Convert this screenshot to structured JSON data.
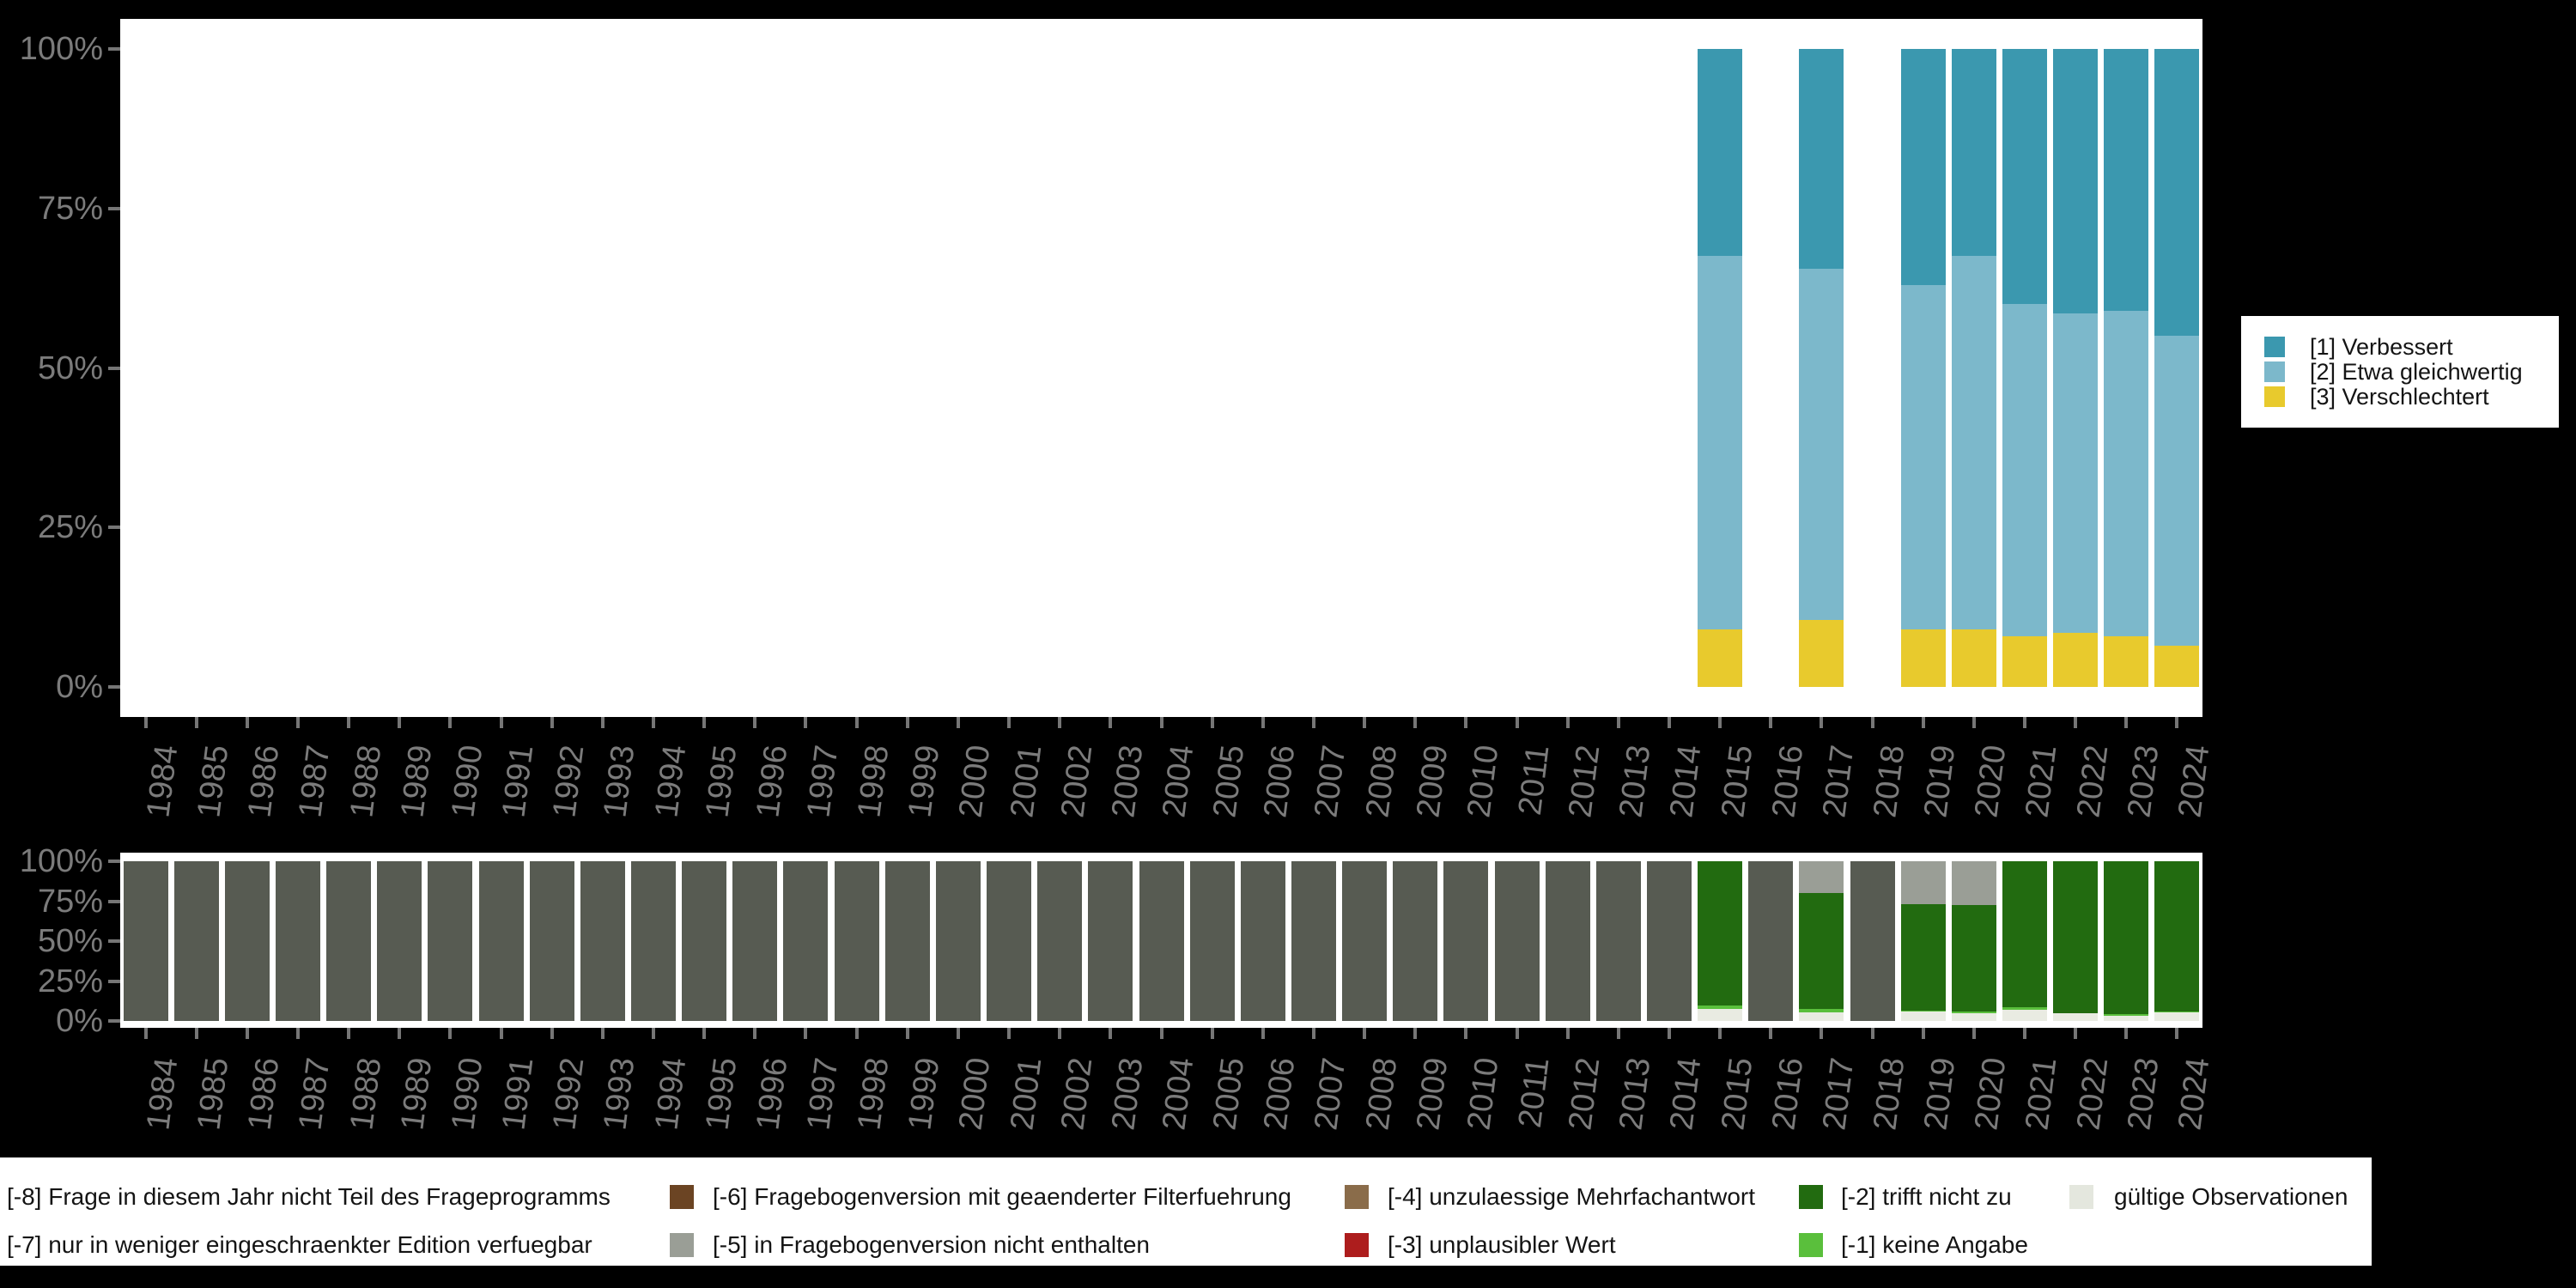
{
  "figure": {
    "background": "#000000",
    "panel_color": "#ffffff",
    "axis_text_color": "#7b7b7b",
    "tick_color": "#767676",
    "legend_text_color": "#141414"
  },
  "y_axis_tick_labels": [
    "0%",
    "25%",
    "50%",
    "75%",
    "100%"
  ],
  "years": [
    "1984",
    "1985",
    "1986",
    "1987",
    "1988",
    "1989",
    "1990",
    "1991",
    "1992",
    "1993",
    "1994",
    "1995",
    "1996",
    "1997",
    "1998",
    "1999",
    "2000",
    "2001",
    "2002",
    "2003",
    "2004",
    "2005",
    "2006",
    "2007",
    "2008",
    "2009",
    "2010",
    "2011",
    "2012",
    "2013",
    "2014",
    "2015",
    "2016",
    "2017",
    "2018",
    "2019",
    "2020",
    "2021",
    "2022",
    "2023",
    "2024"
  ],
  "chart_data": [
    {
      "type": "bar",
      "variant": "stacked-percent",
      "title": "",
      "xlabel": "",
      "ylabel": "",
      "ylim": [
        0,
        100
      ],
      "grid": false,
      "legend_position": "right-outside",
      "categories": [
        "1984",
        "1985",
        "1986",
        "1987",
        "1988",
        "1989",
        "1990",
        "1991",
        "1992",
        "1993",
        "1994",
        "1995",
        "1996",
        "1997",
        "1998",
        "1999",
        "2000",
        "2001",
        "2002",
        "2003",
        "2004",
        "2005",
        "2006",
        "2007",
        "2008",
        "2009",
        "2010",
        "2011",
        "2012",
        "2013",
        "2014",
        "2015",
        "2016",
        "2017",
        "2018",
        "2019",
        "2020",
        "2021",
        "2022",
        "2023",
        "2024"
      ],
      "series": [
        {
          "name": "[3] Verschlechtert",
          "color": "#e8ca2d",
          "values": [
            null,
            null,
            null,
            null,
            null,
            null,
            null,
            null,
            null,
            null,
            null,
            null,
            null,
            null,
            null,
            null,
            null,
            null,
            null,
            null,
            null,
            null,
            null,
            null,
            null,
            null,
            null,
            null,
            null,
            null,
            null,
            9,
            null,
            10.5,
            null,
            9,
            9,
            8,
            8.5,
            8,
            6.5
          ]
        },
        {
          "name": "[2] Etwa gleichwertig",
          "color": "#7cb8cb",
          "values": [
            null,
            null,
            null,
            null,
            null,
            null,
            null,
            null,
            null,
            null,
            null,
            null,
            null,
            null,
            null,
            null,
            null,
            null,
            null,
            null,
            null,
            null,
            null,
            null,
            null,
            null,
            null,
            null,
            null,
            null,
            null,
            58.5,
            null,
            55,
            null,
            54,
            58.5,
            52,
            50,
            51,
            48.5
          ]
        },
        {
          "name": "[1] Verbessert",
          "color": "#3b98af",
          "values": [
            null,
            null,
            null,
            null,
            null,
            null,
            null,
            null,
            null,
            null,
            null,
            null,
            null,
            null,
            null,
            null,
            null,
            null,
            null,
            null,
            null,
            null,
            null,
            null,
            null,
            null,
            null,
            null,
            null,
            null,
            null,
            32.5,
            null,
            34.5,
            null,
            37,
            32.5,
            40,
            41.5,
            41,
            45
          ]
        }
      ]
    },
    {
      "type": "bar",
      "variant": "stacked-percent",
      "title": "",
      "xlabel": "",
      "ylabel": "",
      "ylim": [
        0,
        100
      ],
      "grid": false,
      "legend_position": "bottom-outside",
      "categories": [
        "1984",
        "1985",
        "1986",
        "1987",
        "1988",
        "1989",
        "1990",
        "1991",
        "1992",
        "1993",
        "1994",
        "1995",
        "1996",
        "1997",
        "1998",
        "1999",
        "2000",
        "2001",
        "2002",
        "2003",
        "2004",
        "2005",
        "2006",
        "2007",
        "2008",
        "2009",
        "2010",
        "2011",
        "2012",
        "2013",
        "2014",
        "2015",
        "2016",
        "2017",
        "2018",
        "2019",
        "2020",
        "2021",
        "2022",
        "2023",
        "2024"
      ],
      "series": [
        {
          "name": "gültige Observationen",
          "color": "#e9ebe2",
          "values": [
            0,
            0,
            0,
            0,
            0,
            0,
            0,
            0,
            0,
            0,
            0,
            0,
            0,
            0,
            0,
            0,
            0,
            0,
            0,
            0,
            0,
            0,
            0,
            0,
            0,
            0,
            0,
            0,
            0,
            0,
            0,
            7.5,
            0,
            5.5,
            0,
            6,
            5,
            7,
            5,
            3,
            5.5
          ]
        },
        {
          "name": "[-1] keine Angabe",
          "color": "#5abf3c",
          "values": [
            0,
            0,
            0,
            0,
            0,
            0,
            0,
            0,
            0,
            0,
            0,
            0,
            0,
            0,
            0,
            0,
            0,
            0,
            0,
            0,
            0,
            0,
            0,
            0,
            0,
            0,
            0,
            0,
            0,
            0,
            0,
            2,
            0,
            2,
            0,
            0.5,
            1,
            1.5,
            0,
            1.5,
            0.5
          ]
        },
        {
          "name": "[-2] trifft nicht zu",
          "color": "#226b10",
          "values": [
            0,
            0,
            0,
            0,
            0,
            0,
            0,
            0,
            0,
            0,
            0,
            0,
            0,
            0,
            0,
            0,
            0,
            0,
            0,
            0,
            0,
            0,
            0,
            0,
            0,
            0,
            0,
            0,
            0,
            0,
            0,
            90.5,
            0,
            72.5,
            0,
            66.5,
            66.5,
            91.5,
            95,
            95.5,
            94
          ]
        },
        {
          "name": "[-5] in Fragebogenversion nicht enthalten",
          "color": "#9a9e96",
          "values": [
            0,
            0,
            0,
            0,
            0,
            0,
            0,
            0,
            0,
            0,
            0,
            0,
            0,
            0,
            0,
            0,
            0,
            0,
            0,
            0,
            0,
            0,
            0,
            0,
            0,
            0,
            0,
            0,
            0,
            0,
            0,
            0,
            0,
            20,
            0,
            27,
            27.5,
            0,
            0,
            0,
            0
          ]
        },
        {
          "name": "[-8] Frage in diesem Jahr nicht Teil des Frageprogramms",
          "color": "#575b52",
          "values": [
            100,
            100,
            100,
            100,
            100,
            100,
            100,
            100,
            100,
            100,
            100,
            100,
            100,
            100,
            100,
            100,
            100,
            100,
            100,
            100,
            100,
            100,
            100,
            100,
            100,
            100,
            100,
            100,
            100,
            100,
            100,
            0,
            100,
            0,
            100,
            0,
            0,
            0,
            0,
            0,
            0
          ]
        }
      ]
    }
  ],
  "top_legend": {
    "items": [
      {
        "label": "[1] Verbessert",
        "color": "#3b98af"
      },
      {
        "label": "[2] Etwa gleichwertig",
        "color": "#7cb8cb"
      },
      {
        "label": "[3] Verschlechtert",
        "color": "#e8ca2d"
      }
    ]
  },
  "bottom_legend": {
    "items": [
      {
        "row": 0,
        "col": 0,
        "label": "[-8] Frage in diesem Jahr nicht Teil des Frageprogramms",
        "color": null
      },
      {
        "row": 0,
        "col": 1,
        "label": "[-6] Fragebogenversion mit geaenderter Filterfuehrung",
        "color": "#6b4423"
      },
      {
        "row": 0,
        "col": 2,
        "label": "[-4] unzulaessige Mehrfachantwort",
        "color": "#8a6c4a"
      },
      {
        "row": 0,
        "col": 3,
        "label": "[-2] trifft nicht zu",
        "color": "#226b10"
      },
      {
        "row": 0,
        "col": 4,
        "label": "gültige Observationen",
        "color": "#e4e7de"
      },
      {
        "row": 1,
        "col": 0,
        "label": "[-7] nur in weniger eingeschraenkter Edition verfuegbar",
        "color": null
      },
      {
        "row": 1,
        "col": 1,
        "label": "[-5] in Fragebogenversion nicht enthalten",
        "color": "#9a9e96"
      },
      {
        "row": 1,
        "col": 2,
        "label": "[-3] unplausibler Wert",
        "color": "#ad1d1d"
      },
      {
        "row": 1,
        "col": 3,
        "label": "[-1] keine Angabe",
        "color": "#5abf3c"
      }
    ]
  }
}
